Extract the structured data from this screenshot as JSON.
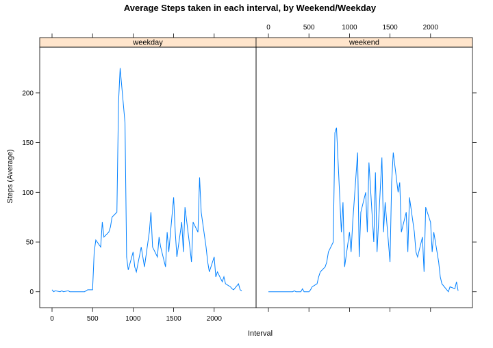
{
  "chart_data": {
    "type": "line",
    "title": "Average Steps taken in each interval, by Weekend/Weekday",
    "xlabel": "Interval",
    "ylabel": "Steps (Average)",
    "x": [
      0,
      20,
      40,
      100,
      120,
      140,
      200,
      220,
      240,
      300,
      320,
      340,
      400,
      420,
      440,
      500,
      520,
      540,
      600,
      620,
      640,
      700,
      720,
      740,
      800,
      820,
      840,
      900,
      920,
      940,
      1000,
      1020,
      1040,
      1100,
      1120,
      1140,
      1200,
      1220,
      1240,
      1300,
      1320,
      1340,
      1400,
      1420,
      1440,
      1500,
      1520,
      1540,
      1600,
      1620,
      1640,
      1700,
      1720,
      1740,
      1800,
      1820,
      1840,
      1900,
      1920,
      1940,
      2000,
      2020,
      2040,
      2100,
      2120,
      2140,
      2200,
      2220,
      2240,
      2300,
      2320,
      2340
    ],
    "xlim": [
      -152,
      2517
    ],
    "xticks": [
      0,
      500,
      1000,
      1500,
      2000
    ],
    "ylim": [
      -16,
      246
    ],
    "yticks": [
      0,
      50,
      100,
      150,
      200
    ],
    "series": [
      {
        "name": "weekday",
        "color": "#0080ff",
        "values": [
          2,
          0,
          1,
          0,
          1,
          0,
          1,
          0,
          0,
          0,
          0,
          0,
          0,
          1,
          2,
          2,
          40,
          52,
          45,
          70,
          55,
          60,
          65,
          75,
          80,
          190,
          225,
          170,
          35,
          22,
          40,
          25,
          20,
          45,
          35,
          25,
          60,
          80,
          45,
          35,
          55,
          45,
          25,
          60,
          40,
          95,
          60,
          35,
          70,
          40,
          85,
          45,
          30,
          70,
          60,
          115,
          80,
          45,
          30,
          20,
          35,
          15,
          20,
          10,
          15,
          8,
          5,
          3,
          2,
          8,
          2,
          1
        ]
      },
      {
        "name": "weekend",
        "color": "#0080ff",
        "values": [
          0,
          0,
          0,
          0,
          0,
          0,
          0,
          0,
          0,
          0,
          1,
          0,
          0,
          3,
          0,
          0,
          2,
          5,
          8,
          15,
          20,
          25,
          30,
          40,
          50,
          160,
          165,
          60,
          90,
          25,
          60,
          40,
          70,
          140,
          35,
          80,
          100,
          60,
          130,
          50,
          120,
          40,
          135,
          60,
          90,
          30,
          110,
          140,
          100,
          110,
          60,
          80,
          40,
          95,
          60,
          40,
          35,
          55,
          20,
          85,
          70,
          40,
          60,
          30,
          15,
          8,
          2,
          0,
          5,
          3,
          10,
          1
        ]
      }
    ]
  }
}
